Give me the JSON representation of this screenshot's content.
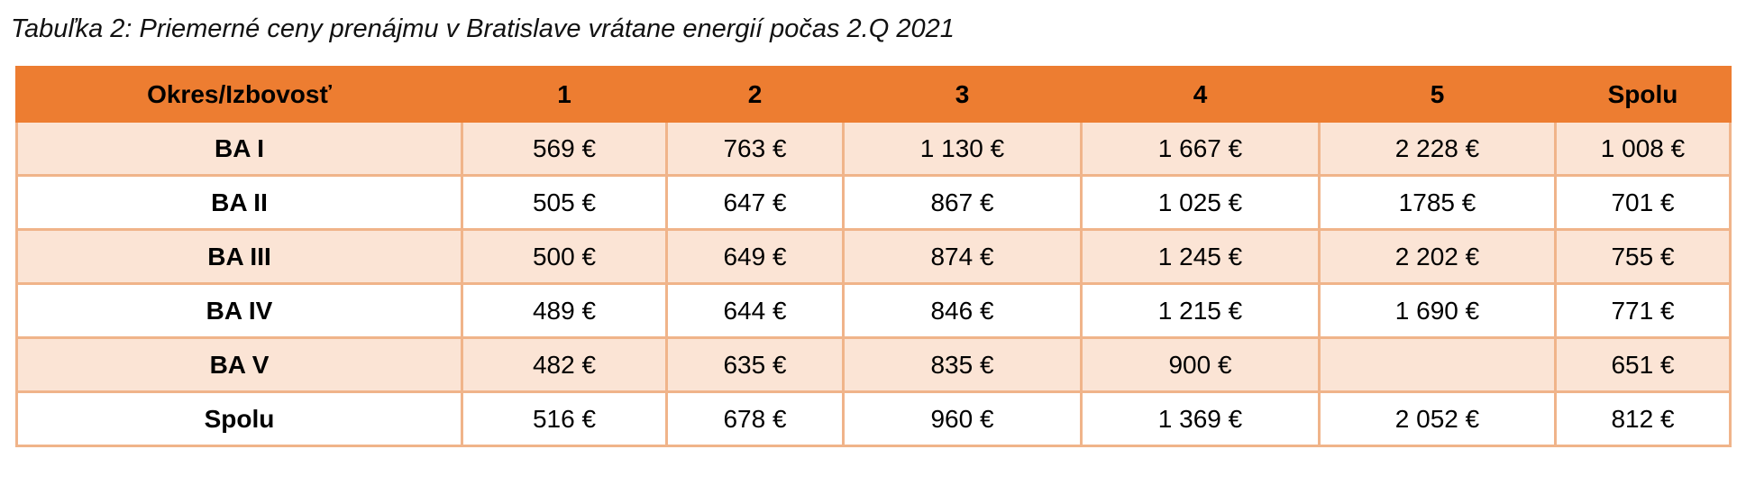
{
  "caption": "Tabuľka 2: Priemerné ceny prenájmu v Bratislave vrátane energií počas 2.Q 2021",
  "table": {
    "headers": [
      "Okres/Izbovosť",
      "1",
      "2",
      "3",
      "4",
      "5",
      "Spolu"
    ],
    "rows": [
      [
        "BA I",
        "569 €",
        "763 €",
        "1 130 €",
        "1 667 €",
        "2 228 €",
        "1 008 €"
      ],
      [
        "BA II",
        "505 €",
        "647 €",
        "867 €",
        "1 025 €",
        "1785 €",
        "701 €"
      ],
      [
        "BA III",
        "500 €",
        "649 €",
        "874 €",
        "1 245 €",
        "2 202 €",
        "755 €"
      ],
      [
        "BA IV",
        "489 €",
        "644 €",
        "846 €",
        "1 215 €",
        "1 690 €",
        "771 €"
      ],
      [
        "BA V",
        "482 €",
        "635 €",
        "835 €",
        "900 €",
        "",
        "651 €"
      ],
      [
        "Spolu",
        "516 €",
        "678 €",
        "960 €",
        "1 369 €",
        "2 052 €",
        "812 €"
      ]
    ]
  },
  "colors": {
    "header_bg": "#ed7d31",
    "band_bg": "#fbe4d5",
    "border": "#f0b48a"
  }
}
